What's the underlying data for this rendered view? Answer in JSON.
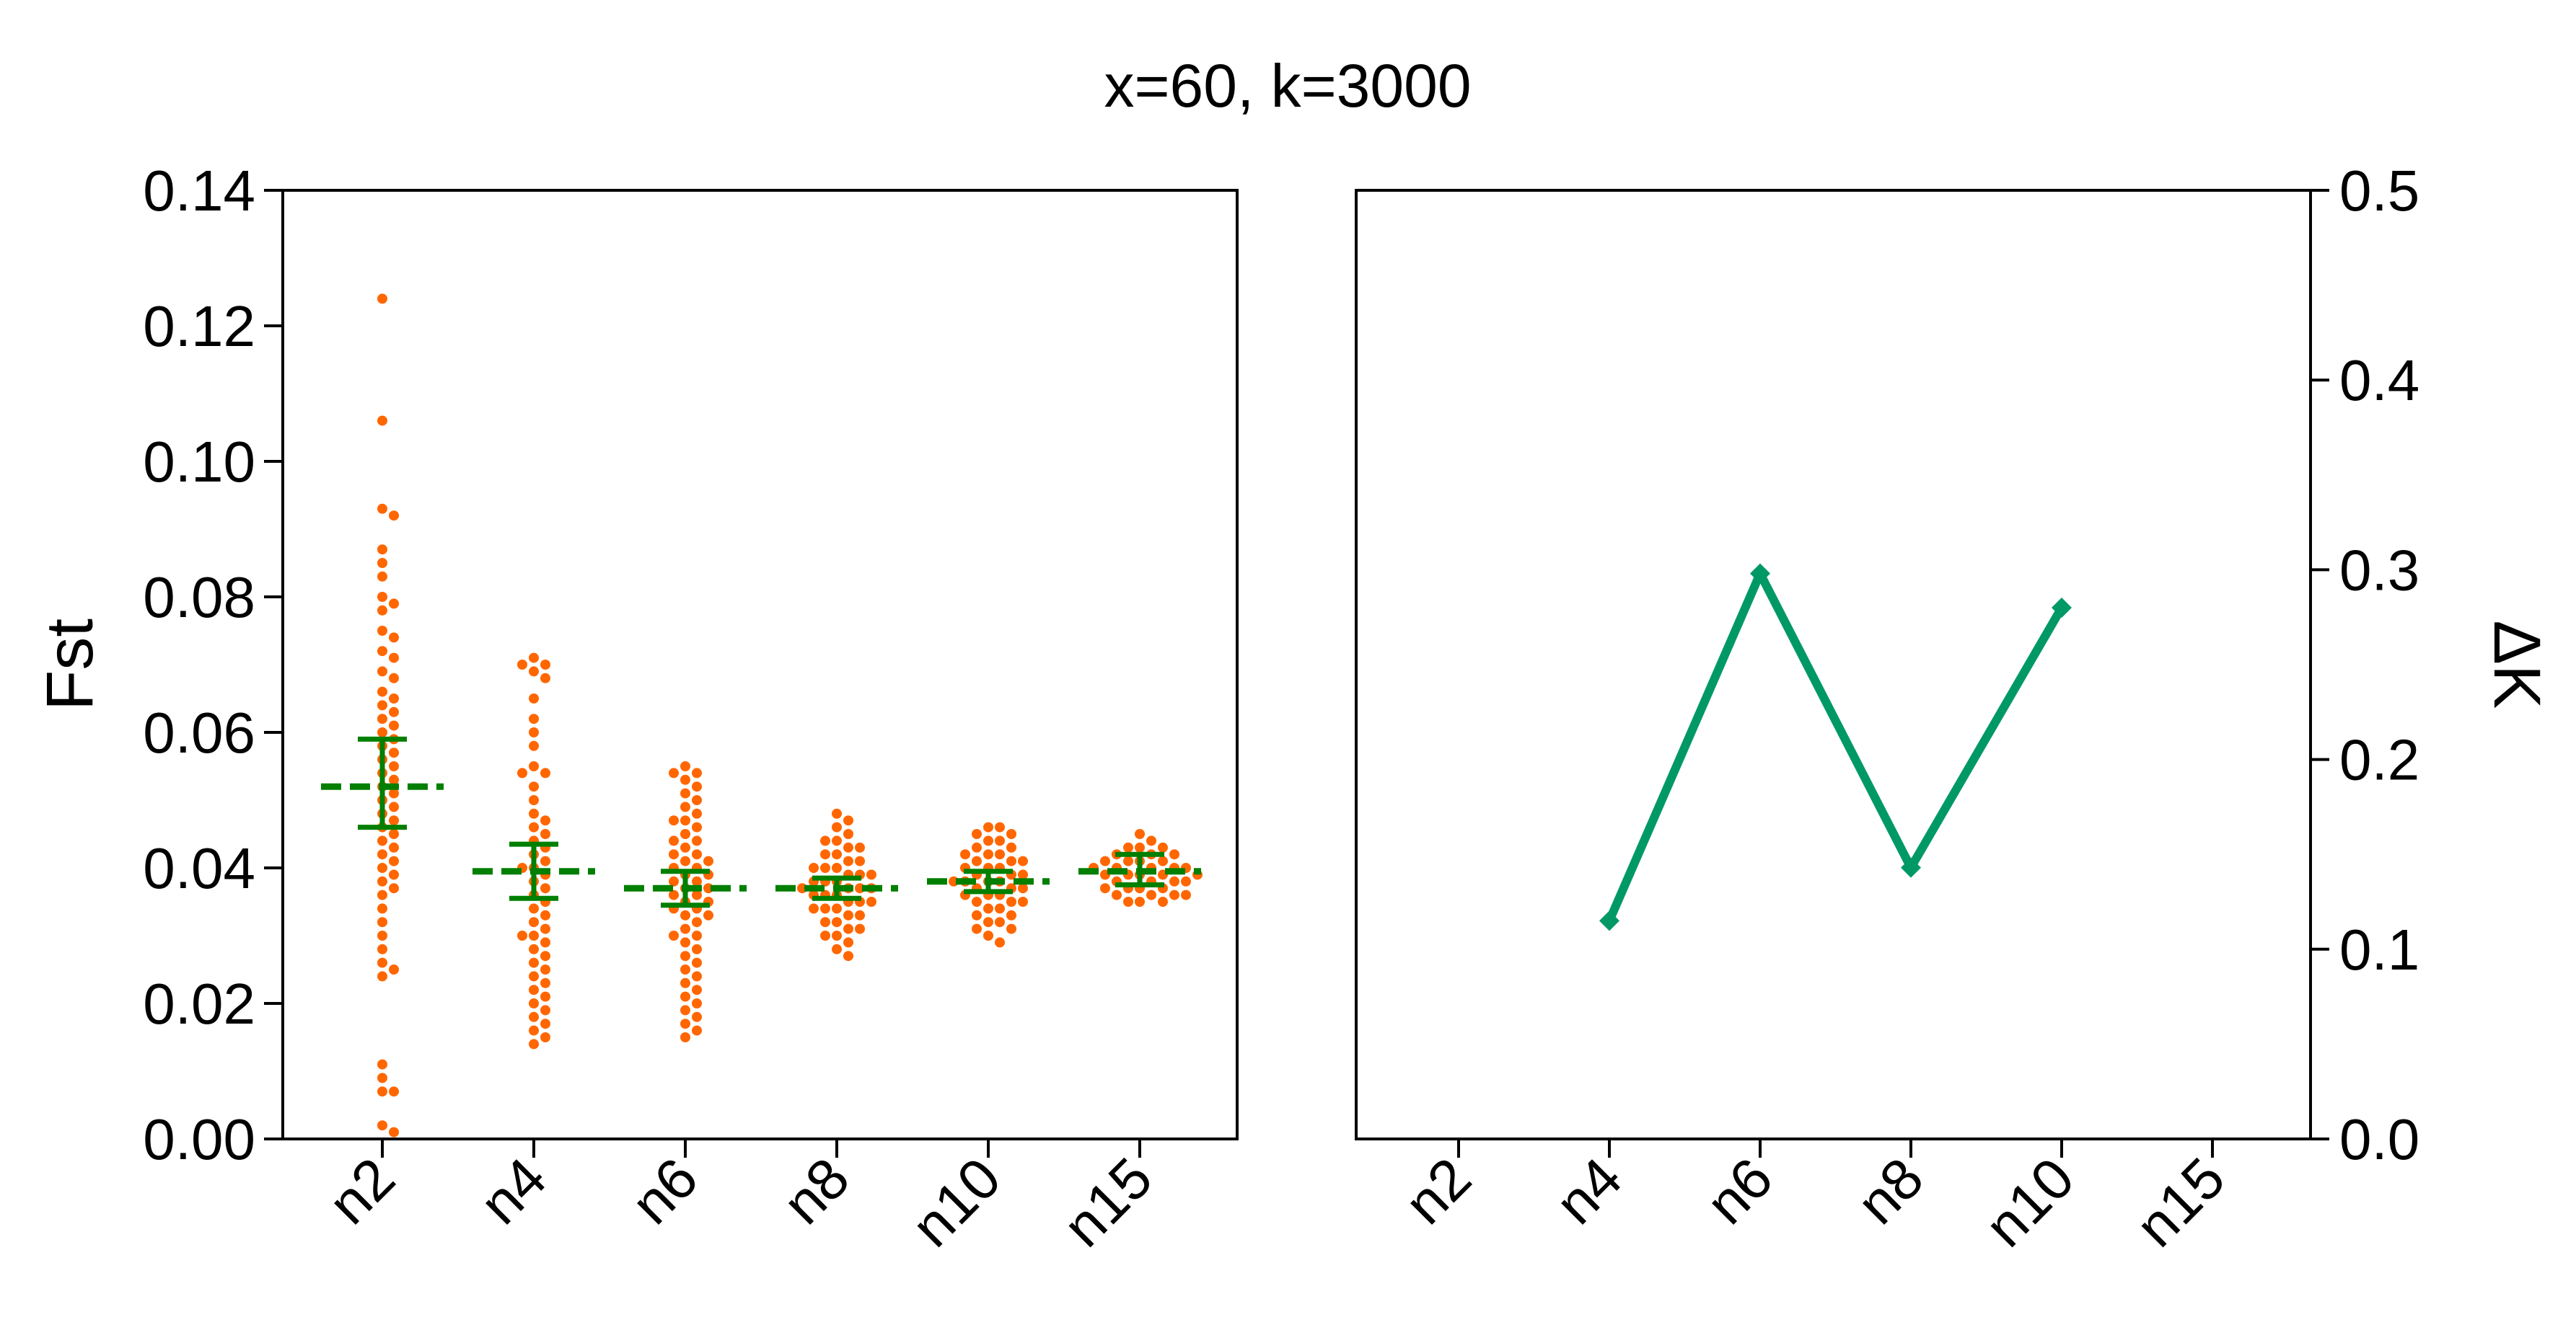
{
  "chart_data": [
    {
      "type": "scatter",
      "title": "x=60, k=3000",
      "xlabel": "",
      "ylabel": "Fst",
      "ylim": [
        0,
        0.14
      ],
      "yticks": [
        "0.00",
        "0.02",
        "0.04",
        "0.06",
        "0.08",
        "0.10",
        "0.12",
        "0.14"
      ],
      "categories": [
        "n2",
        "n4",
        "n6",
        "n8",
        "n10",
        "n15"
      ],
      "point_color": "#ff6600",
      "summary_color": "#007f00",
      "groups": [
        {
          "category": "n2",
          "mean": 0.052,
          "ci_low": 0.046,
          "ci_high": 0.059,
          "values": [
            0.124,
            0.106,
            0.093,
            0.092,
            0.087,
            0.085,
            0.083,
            0.08,
            0.079,
            0.078,
            0.075,
            0.074,
            0.072,
            0.071,
            0.069,
            0.068,
            0.066,
            0.065,
            0.064,
            0.063,
            0.062,
            0.061,
            0.06,
            0.059,
            0.058,
            0.057,
            0.056,
            0.055,
            0.054,
            0.053,
            0.052,
            0.051,
            0.05,
            0.049,
            0.048,
            0.047,
            0.046,
            0.045,
            0.044,
            0.043,
            0.042,
            0.041,
            0.04,
            0.039,
            0.038,
            0.037,
            0.036,
            0.034,
            0.032,
            0.03,
            0.028,
            0.026,
            0.025,
            0.024,
            0.011,
            0.009,
            0.007,
            0.007,
            0.002,
            0.001
          ]
        },
        {
          "category": "n4",
          "mean": 0.0395,
          "ci_low": 0.0355,
          "ci_high": 0.0435,
          "values": [
            0.071,
            0.07,
            0.07,
            0.069,
            0.068,
            0.065,
            0.062,
            0.06,
            0.058,
            0.055,
            0.054,
            0.054,
            0.052,
            0.05,
            0.048,
            0.047,
            0.046,
            0.045,
            0.044,
            0.043,
            0.042,
            0.041,
            0.04,
            0.04,
            0.039,
            0.038,
            0.037,
            0.036,
            0.035,
            0.034,
            0.033,
            0.032,
            0.031,
            0.03,
            0.03,
            0.029,
            0.028,
            0.027,
            0.026,
            0.025,
            0.024,
            0.023,
            0.022,
            0.021,
            0.02,
            0.019,
            0.018,
            0.017,
            0.016,
            0.015,
            0.014
          ]
        },
        {
          "category": "n6",
          "mean": 0.037,
          "ci_low": 0.0345,
          "ci_high": 0.0395,
          "values": [
            0.055,
            0.054,
            0.054,
            0.053,
            0.052,
            0.051,
            0.05,
            0.049,
            0.048,
            0.047,
            0.047,
            0.046,
            0.045,
            0.044,
            0.044,
            0.043,
            0.042,
            0.042,
            0.041,
            0.041,
            0.04,
            0.04,
            0.039,
            0.039,
            0.038,
            0.038,
            0.037,
            0.037,
            0.036,
            0.036,
            0.035,
            0.035,
            0.034,
            0.034,
            0.033,
            0.033,
            0.032,
            0.031,
            0.03,
            0.03,
            0.029,
            0.028,
            0.027,
            0.026,
            0.025,
            0.024,
            0.023,
            0.022,
            0.021,
            0.02,
            0.019,
            0.018,
            0.017,
            0.016,
            0.015
          ]
        },
        {
          "category": "n8",
          "mean": 0.037,
          "ci_low": 0.0355,
          "ci_high": 0.0385,
          "values": [
            0.048,
            0.047,
            0.046,
            0.045,
            0.044,
            0.044,
            0.043,
            0.043,
            0.042,
            0.042,
            0.041,
            0.041,
            0.04,
            0.04,
            0.04,
            0.039,
            0.039,
            0.039,
            0.038,
            0.038,
            0.038,
            0.037,
            0.037,
            0.037,
            0.037,
            0.036,
            0.036,
            0.036,
            0.035,
            0.035,
            0.035,
            0.034,
            0.034,
            0.034,
            0.033,
            0.033,
            0.032,
            0.032,
            0.031,
            0.031,
            0.03,
            0.03,
            0.029,
            0.028,
            0.027
          ]
        },
        {
          "category": "n10",
          "mean": 0.038,
          "ci_low": 0.0365,
          "ci_high": 0.0395,
          "values": [
            0.046,
            0.046,
            0.045,
            0.045,
            0.044,
            0.044,
            0.043,
            0.043,
            0.042,
            0.042,
            0.042,
            0.041,
            0.041,
            0.041,
            0.04,
            0.04,
            0.04,
            0.039,
            0.039,
            0.039,
            0.038,
            0.038,
            0.038,
            0.038,
            0.037,
            0.037,
            0.037,
            0.036,
            0.036,
            0.036,
            0.035,
            0.035,
            0.035,
            0.034,
            0.034,
            0.033,
            0.033,
            0.032,
            0.032,
            0.031,
            0.031,
            0.03,
            0.029
          ]
        },
        {
          "category": "n15",
          "mean": 0.0395,
          "ci_low": 0.0375,
          "ci_high": 0.042,
          "values": [
            0.045,
            0.044,
            0.043,
            0.043,
            0.043,
            0.042,
            0.042,
            0.042,
            0.041,
            0.041,
            0.041,
            0.041,
            0.04,
            0.04,
            0.04,
            0.04,
            0.04,
            0.039,
            0.039,
            0.039,
            0.039,
            0.039,
            0.038,
            0.038,
            0.038,
            0.038,
            0.037,
            0.037,
            0.037,
            0.037,
            0.036,
            0.036,
            0.036,
            0.036,
            0.035,
            0.035,
            0.035
          ]
        }
      ]
    },
    {
      "type": "line",
      "xlabel": "",
      "ylabel": "ΔK",
      "ylim": [
        0,
        0.5
      ],
      "yticks": [
        "0.0",
        "0.1",
        "0.2",
        "0.3",
        "0.4",
        "0.5"
      ],
      "categories": [
        "n2",
        "n4",
        "n6",
        "n8",
        "n10",
        "n15"
      ],
      "line_color": "#009966",
      "series": [
        {
          "values": [
            null,
            0.115,
            0.298,
            0.143,
            0.28,
            null
          ]
        }
      ]
    }
  ]
}
